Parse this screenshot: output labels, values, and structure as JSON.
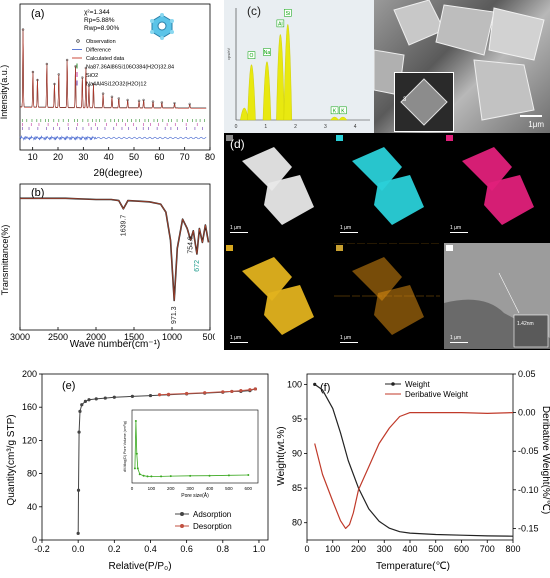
{
  "labels": {
    "a": "(a)",
    "b": "(b)",
    "c": "(c)",
    "d": "(d)",
    "e": "(e)",
    "f": "(f)"
  },
  "panel_a": {
    "stats": [
      "χ²=1.344",
      "Rp=5.88%",
      "Rwp=8.90%"
    ],
    "legend": [
      "Observation",
      "Difference",
      "Calculated data",
      "Na87.36Al86Si106O384(H2O)32.84",
      "SiO2",
      "Na4Al4Si12O32(H2O)12"
    ],
    "colors": {
      "obs": "#222222",
      "diff": "#4a6ad0",
      "calc": "#c83a2a",
      "tick1": "#2f8f2f",
      "tick2": "#c03aa0",
      "tick3": "#6a3ab0"
    }
  },
  "panel_c": {
    "scale_label": "1μm",
    "inset_label": "3",
    "eds_peaks": [
      "C",
      "O",
      "Na",
      "Al",
      "Si",
      "K",
      "K"
    ],
    "eds_ylabel": "cps/eV"
  },
  "panel_d": {
    "scale": "1 μm",
    "tiles": [
      {
        "name": "haadf",
        "color": "#e8e8e8",
        "badge": "#8a8a8a"
      },
      {
        "name": "element-cyan",
        "color": "#2ad0d8",
        "badge": "#2ad0d8"
      },
      {
        "name": "element-magenta",
        "color": "#e0207a",
        "badge": "#e0207a"
      },
      {
        "name": "element-yellow",
        "color": "#e2b21e",
        "badge": "#d8a820"
      },
      {
        "name": "element-orange",
        "color": "#d88a10",
        "badge": "#c8a030"
      },
      {
        "name": "hrtem",
        "color": "#cfcfcf",
        "badge": "#ffffff"
      }
    ],
    "hrtem_label": "1.42nm"
  },
  "chart_data": [
    {
      "panel": "a",
      "type": "line",
      "xlabel": "2θ(degree)",
      "ylabel": "Intensity(a.u.)",
      "xlim": [
        5,
        80
      ],
      "x_ticks": [
        10,
        20,
        30,
        40,
        50,
        60,
        70,
        80
      ],
      "peaks": [
        {
          "x": 6.2,
          "y": 0.98
        },
        {
          "x": 10.1,
          "y": 0.45
        },
        {
          "x": 11.9,
          "y": 0.35
        },
        {
          "x": 15.6,
          "y": 0.55
        },
        {
          "x": 18.6,
          "y": 0.3
        },
        {
          "x": 20.3,
          "y": 0.42
        },
        {
          "x": 23.6,
          "y": 0.6
        },
        {
          "x": 26.9,
          "y": 0.52
        },
        {
          "x": 29.6,
          "y": 0.38
        },
        {
          "x": 31.0,
          "y": 0.5
        },
        {
          "x": 32.2,
          "y": 0.28
        },
        {
          "x": 34.0,
          "y": 0.3
        },
        {
          "x": 37.8,
          "y": 0.18
        },
        {
          "x": 41.3,
          "y": 0.14
        },
        {
          "x": 44.0,
          "y": 0.12
        },
        {
          "x": 47.5,
          "y": 0.1
        },
        {
          "x": 52.0,
          "y": 0.09
        },
        {
          "x": 53.8,
          "y": 0.1
        },
        {
          "x": 57.5,
          "y": 0.08
        },
        {
          "x": 61.0,
          "y": 0.07
        },
        {
          "x": 66.0,
          "y": 0.06
        },
        {
          "x": 72.0,
          "y": 0.05
        }
      ]
    },
    {
      "panel": "b",
      "type": "line",
      "xlabel": "Wave number(cm⁻¹)",
      "ylabel": "Transmittance(%)",
      "xlim": [
        3000,
        500
      ],
      "x_ticks": [
        3000,
        2500,
        2000,
        1500,
        1000,
        500
      ],
      "x": [
        3000,
        2400,
        2000,
        1800,
        1700,
        1639.7,
        1580,
        1300,
        1150,
        1080,
        1020,
        971.3,
        930,
        860,
        800,
        754.9,
        720,
        672,
        640,
        600,
        560,
        520
      ],
      "y": [
        0.98,
        0.98,
        0.97,
        0.97,
        0.96,
        0.89,
        0.96,
        0.95,
        0.93,
        0.86,
        0.62,
        0.1,
        0.55,
        0.8,
        0.72,
        0.62,
        0.7,
        0.5,
        0.72,
        0.6,
        0.75,
        0.6
      ],
      "annotations": [
        {
          "text": "1639.7",
          "x": 1639.7
        },
        {
          "text": "971.3",
          "x": 971.3
        },
        {
          "text": "754.9",
          "x": 754.9
        },
        {
          "text": "672",
          "x": 672
        }
      ]
    },
    {
      "panel": "c-eds",
      "type": "bar",
      "categories": [
        "C",
        "O",
        "Na",
        "Al",
        "Si",
        "K",
        "K"
      ],
      "x": [
        0.28,
        0.52,
        1.04,
        1.49,
        1.74,
        3.31,
        3.59
      ],
      "values": [
        0.12,
        0.55,
        0.58,
        0.85,
        0.95,
        0.03,
        0.03
      ],
      "xlim": [
        0,
        4.5
      ],
      "x_ticks": [
        0,
        1,
        2,
        3,
        4
      ]
    },
    {
      "panel": "e",
      "type": "line",
      "xlabel": "Relative(P/P₀)",
      "ylabel": "Quantity(cm³/g STP)",
      "xlim": [
        -0.2,
        1.05
      ],
      "ylim": [
        0,
        200
      ],
      "x_ticks": [
        -0.2,
        0.0,
        0.2,
        0.4,
        0.6,
        0.8,
        1.0
      ],
      "y_ticks": [
        0,
        40,
        80,
        120,
        160,
        200
      ],
      "series": [
        {
          "name": "Adsorption",
          "color": "#444444",
          "x": [
            0.0,
            0.002,
            0.005,
            0.01,
            0.02,
            0.04,
            0.06,
            0.1,
            0.15,
            0.2,
            0.3,
            0.4,
            0.5,
            0.6,
            0.7,
            0.8,
            0.85,
            0.9,
            0.95,
            0.98
          ],
          "y": [
            8,
            60,
            130,
            155,
            163,
            167,
            169,
            170,
            171,
            172,
            173,
            174,
            175,
            176,
            177,
            178,
            179,
            179,
            180,
            182
          ]
        },
        {
          "name": "Desorption",
          "color": "#c05040",
          "x": [
            0.98,
            0.95,
            0.9,
            0.85,
            0.8,
            0.7,
            0.6,
            0.5,
            0.45
          ],
          "y": [
            182,
            181,
            180,
            179,
            178.5,
            177.5,
            176.5,
            175.5,
            175
          ]
        }
      ],
      "inset": {
        "type": "line",
        "xlabel": "Pore size(Å)",
        "ylabel": "dV/dlog(D) Pore Volume (cm³/g)",
        "xlim": [
          0,
          650
        ],
        "ylim": [
          0,
          0.1
        ],
        "x_ticks": [
          0,
          100,
          200,
          300,
          400,
          500,
          600
        ],
        "x": [
          15,
          20,
          25,
          30,
          40,
          60,
          80,
          100,
          150,
          200,
          300,
          400,
          500,
          600
        ],
        "y": [
          0.02,
          0.085,
          0.04,
          0.02,
          0.012,
          0.01,
          0.009,
          0.009,
          0.009,
          0.0095,
          0.0098,
          0.01,
          0.0105,
          0.011
        ]
      }
    },
    {
      "panel": "f",
      "type": "line",
      "xlabel": "Temperature(℃)",
      "ylabel": "Weight(wt.%)",
      "y2label": "Deribative Weight(%/℃)",
      "xlim": [
        0,
        800
      ],
      "ylim": [
        77.5,
        101.5
      ],
      "y2lim": [
        -0.165,
        0.05
      ],
      "x_ticks": [
        0,
        100,
        200,
        300,
        400,
        500,
        600,
        700,
        800
      ],
      "y_ticks": [
        80,
        85,
        90,
        95,
        100
      ],
      "y2_ticks": [
        -0.15,
        -0.1,
        -0.05,
        0.0,
        0.05
      ],
      "series": [
        {
          "name": "Weight",
          "axis": "left",
          "color": "#222222",
          "x": [
            30,
            60,
            100,
            130,
            160,
            200,
            240,
            280,
            320,
            360,
            400,
            500,
            600,
            700,
            800
          ],
          "y": [
            100,
            99.2,
            96.5,
            93.0,
            89.0,
            85.0,
            82.0,
            80.2,
            79.2,
            78.7,
            78.5,
            78.3,
            78.2,
            78.1,
            78.05
          ]
        },
        {
          "name": "Deribative Weight",
          "axis": "right",
          "color": "#c03a2a",
          "x": [
            30,
            60,
            100,
            130,
            150,
            165,
            180,
            200,
            240,
            280,
            320,
            360,
            400,
            450,
            500,
            600,
            700,
            800
          ],
          "y": [
            -0.04,
            -0.08,
            -0.115,
            -0.14,
            -0.15,
            -0.145,
            -0.13,
            -0.1,
            -0.07,
            -0.04,
            -0.02,
            -0.005,
            0.0,
            0.0,
            0.0,
            0.0,
            -0.001,
            0.0
          ]
        }
      ]
    }
  ]
}
